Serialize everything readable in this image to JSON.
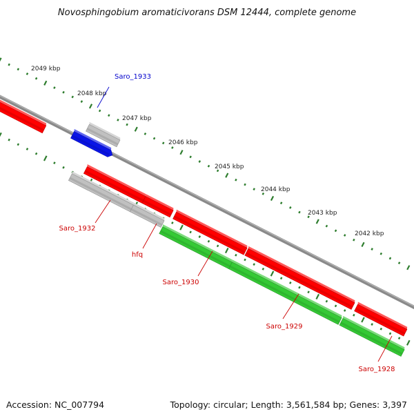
{
  "title": "Novosphingobium aromaticivorans DSM 12444, complete genome",
  "ruler_labels": [
    "2049 kbp",
    "2048 kbp",
    "2047 kbp",
    "2046 kbp",
    "2045 kbp",
    "2044 kbp",
    "2043 kbp",
    "2042 kbp"
  ],
  "genes": [
    {
      "label": "Saro_1933",
      "color": "#0000cc"
    },
    {
      "label": "Saro_1932",
      "color": "#cc0000"
    },
    {
      "label": "hfq",
      "color": "#cc0000"
    },
    {
      "label": "Saro_1930",
      "color": "#cc0000"
    },
    {
      "label": "Saro_1929",
      "color": "#cc0000"
    },
    {
      "label": "Saro_1928",
      "color": "#cc0000"
    }
  ],
  "feature_colors": {
    "forward_cds": "#ff0000",
    "reverse_cds": "#35c935",
    "rna": "#c0c0c0",
    "highlight": "#0a14e6",
    "backbone": "#8a8a8a",
    "ticks": "#2e7d2e"
  },
  "footer": {
    "accession": "Accession: NC_007794",
    "topology": "Topology: circular; Length: 3,561,584 bp; Genes: 3,397"
  }
}
